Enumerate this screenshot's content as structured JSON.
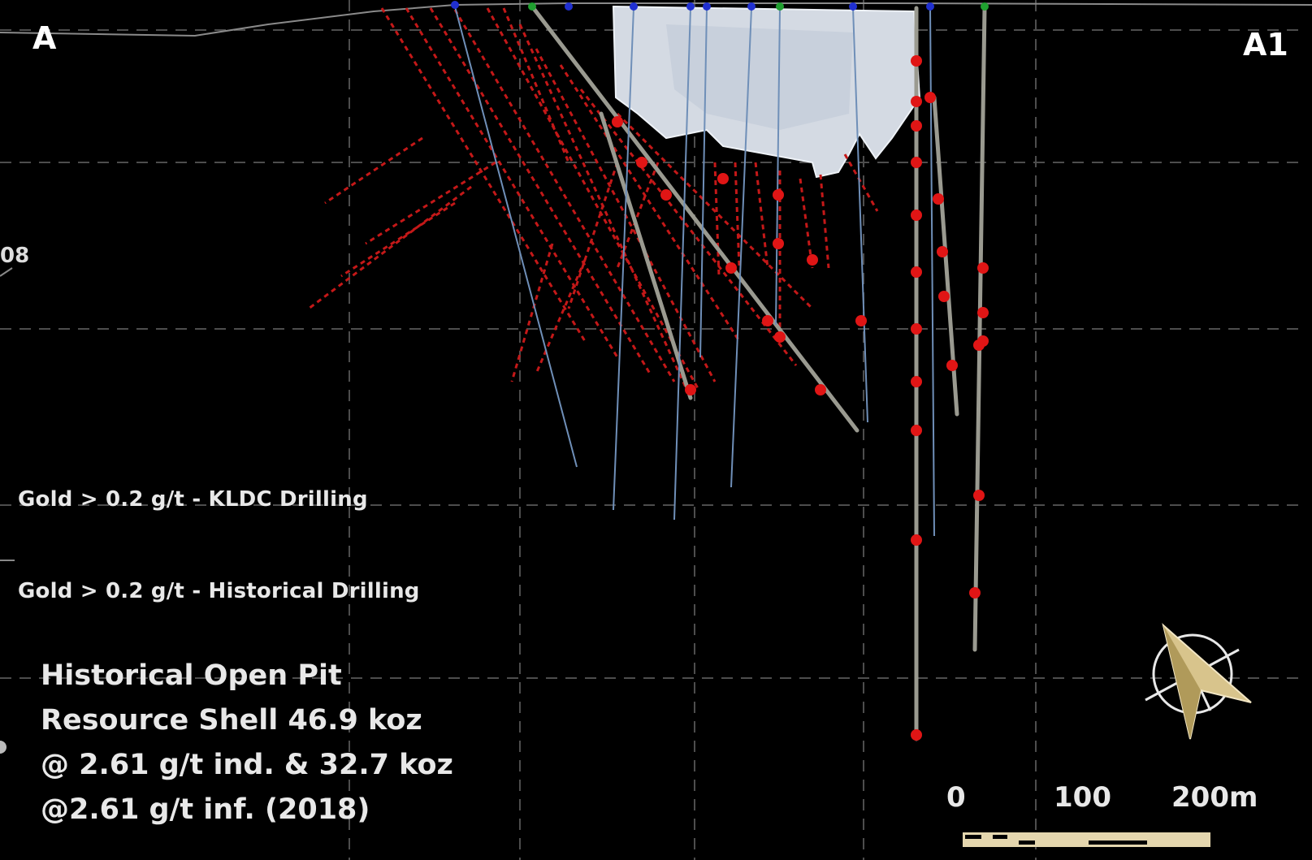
{
  "section": {
    "start_label": "A",
    "end_label": "A1",
    "edge_fragment": "08"
  },
  "legend": {
    "kldc": "Gold > 0.2 g/t - KLDC Drilling",
    "historical": "Gold > 0.2 g/t - Historical Drilling"
  },
  "resource_note": {
    "lines": [
      "Historical Open Pit",
      "Resource Shell 46.9 koz",
      "@ 2.61 g/t ind. & 32.7 koz",
      "@2.61 g/t inf. (2018)"
    ]
  },
  "scale_bar": {
    "labels": [
      "0",
      "100",
      "200m"
    ]
  },
  "colors": {
    "background": "#000000",
    "gold_intercept": "#e01515",
    "kldc_drillhole": "#9a9a90",
    "historical_drillhole": "#6f8fb8",
    "pit_shell": "#d4dae3",
    "grid": "#5a5a5a",
    "north_arrow": "#d8c48c"
  },
  "icons": {
    "north_arrow": "north-arrow-icon"
  }
}
